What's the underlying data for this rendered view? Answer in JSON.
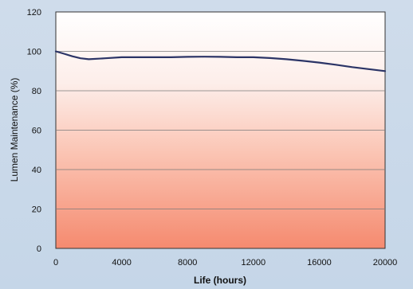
{
  "chart_data": {
    "type": "line",
    "title": "",
    "xlabel": "Life (hours)",
    "ylabel": "Lumen Maintenance (%)",
    "xlim": [
      0,
      20000
    ],
    "ylim": [
      0,
      120
    ],
    "x_ticks": [
      0,
      4000,
      8000,
      12000,
      16000,
      20000
    ],
    "y_ticks": [
      0,
      20,
      40,
      60,
      80,
      100,
      120
    ],
    "grid": true,
    "legend": "none",
    "series": [
      {
        "x": [
          0,
          500,
          1000,
          1500,
          2000,
          3000,
          4000,
          5000,
          6000,
          7000,
          8000,
          9000,
          10000,
          11000,
          12000,
          13000,
          14000,
          15000,
          16000,
          17000,
          18000,
          19000,
          20000
        ],
        "values": [
          100,
          98.8,
          97.5,
          96.5,
          96,
          96.5,
          97,
          97,
          97,
          97,
          97.2,
          97.3,
          97.2,
          97,
          97,
          96.6,
          96,
          95.2,
          94.3,
          93.2,
          92,
          91,
          90
        ],
        "color": "#2b3466"
      }
    ],
    "colors": {
      "line": "#2b3466",
      "plot_top": "#ffffff",
      "plot_bottom": "#f58a6f",
      "grid": "#7a7a7a",
      "page_background": "#c9d9ea"
    }
  }
}
